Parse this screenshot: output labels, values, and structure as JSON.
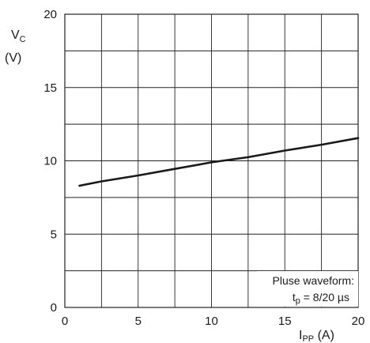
{
  "chart_data": {
    "type": "line",
    "title": "",
    "xlabel": {
      "main": "I",
      "sub": "PP",
      "unit": " (A)"
    },
    "ylabel": {
      "main": "V",
      "sub": "C",
      "unit": "(V)"
    },
    "xlim": [
      0,
      20
    ],
    "ylim": [
      0,
      20
    ],
    "x_ticks": [
      0,
      5,
      10,
      15,
      20
    ],
    "y_ticks": [
      0,
      5,
      10,
      15,
      20
    ],
    "grid": true,
    "x_minor_step": 2.5,
    "y_minor_step": 2.5,
    "series": [
      {
        "x": [
          1,
          2.5,
          5,
          7.5,
          10,
          12.5,
          15,
          17.5,
          20
        ],
        "y": [
          8.3,
          8.6,
          9.0,
          9.45,
          9.9,
          10.25,
          10.7,
          11.1,
          11.55
        ]
      }
    ],
    "annotation": {
      "line1": "Pluse waveform:",
      "line2_main": "t",
      "line2_sub": "p",
      "line2_rest": " = 8/20 µs"
    }
  },
  "colors": {
    "line": "#1a1a1a",
    "grid": "#222222",
    "background": "#ffffff"
  }
}
